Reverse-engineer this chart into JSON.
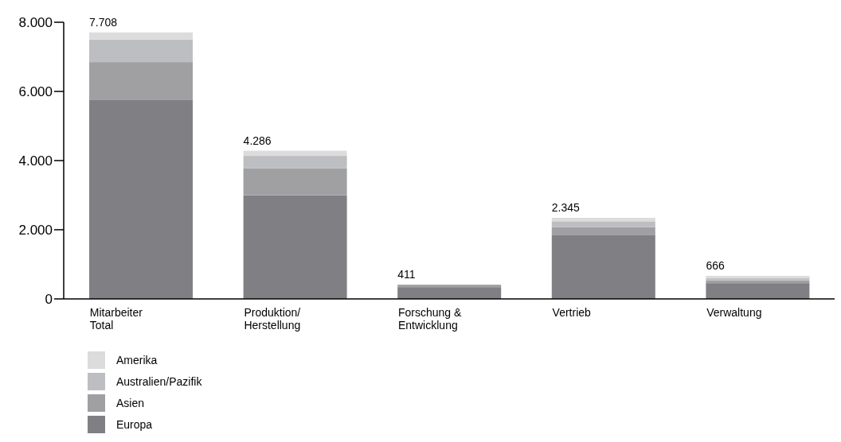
{
  "chart_data": {
    "type": "bar",
    "stacked": true,
    "categories": [
      "Mitarbeiter Total",
      "Produktion/ Herstellung",
      "Forschung & Entwicklung",
      "Vertrieb",
      "Verwaltung"
    ],
    "series": [
      {
        "name": "Europa",
        "color": "#807f84",
        "values": [
          5748,
          2996,
          341,
          1855,
          456
        ]
      },
      {
        "name": "Asien",
        "color": "#a0a0a3",
        "values": [
          1100,
          780,
          70,
          220,
          80
        ]
      },
      {
        "name": "Australien/Pazifik",
        "color": "#bdbec1",
        "values": [
          650,
          360,
          null,
          170,
          60
        ]
      },
      {
        "name": "Amerika",
        "color": "#dcdcdd",
        "values": [
          210,
          150,
          null,
          100,
          70
        ]
      }
    ],
    "totals": [
      "7.708",
      "4.286",
      "411",
      "2.345",
      "666"
    ],
    "ylim": [
      0,
      8000
    ],
    "yticks": [
      {
        "value": 0,
        "label": "0"
      },
      {
        "value": 2000,
        "label": "2.000"
      },
      {
        "value": 4000,
        "label": "4.000"
      },
      {
        "value": 6000,
        "label": "6.000"
      },
      {
        "value": 8000,
        "label": "8.000"
      }
    ],
    "grid": false,
    "legend": "bottom"
  }
}
